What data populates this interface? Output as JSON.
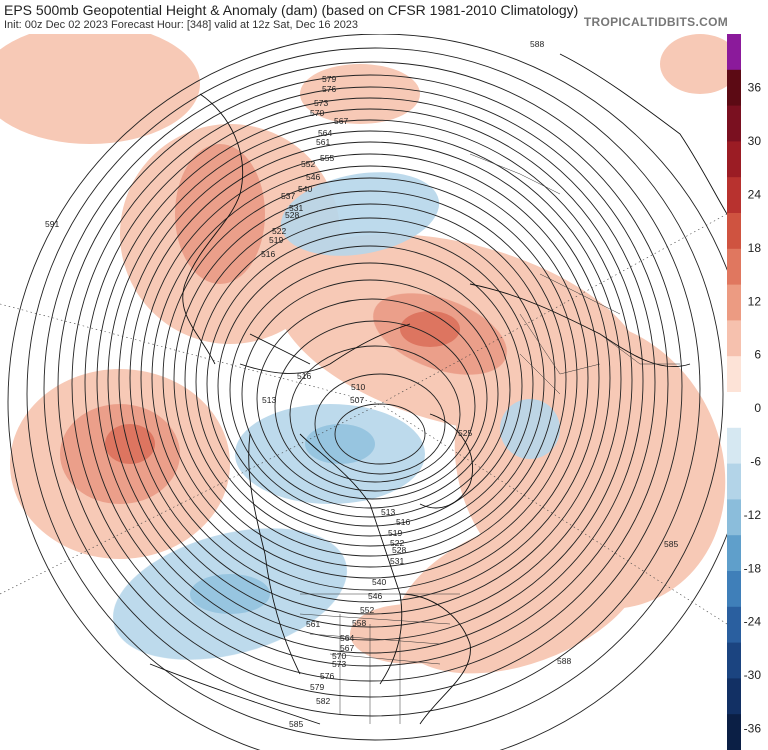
{
  "header": {
    "title": "EPS 500mb Geopotential Height & Anomaly (dam) (based on CFSR 1981-2010 Climatology)",
    "subtitle": "Init: 00z Dec 02 2023   Forecast Hour: [348]   valid at 12z Sat, Dec 16 2023",
    "brand": "TROPICALTIDBITS.COM"
  },
  "colorbar": {
    "ticks": [
      "36",
      "30",
      "24",
      "18",
      "12",
      "6",
      "0",
      "-6",
      "-12",
      "-18",
      "-24",
      "-30",
      "-36"
    ],
    "colors": [
      "#8b1a9b",
      "#5c0a14",
      "#7a1020",
      "#9b1c24",
      "#b8322f",
      "#cf5340",
      "#e0775f",
      "#ec9b82",
      "#f6c1ae",
      "#fde3d7",
      "#ffffff",
      "#d6e8f2",
      "#b3d4e8",
      "#8bbddb",
      "#5f9fcb",
      "#3f7fb9",
      "#2a5f9f",
      "#1b4480",
      "#123064",
      "#0b1f45"
    ]
  },
  "contour_labels": [
    "588",
    "579",
    "576",
    "573",
    "570",
    "567",
    "564",
    "561",
    "555",
    "552",
    "546",
    "540",
    "537",
    "531",
    "528",
    "522",
    "519",
    "516",
    "591",
    "516",
    "510",
    "507",
    "513",
    "525",
    "513",
    "516",
    "519",
    "522",
    "528",
    "531",
    "540",
    "546",
    "552",
    "558",
    "561",
    "564",
    "567",
    "570",
    "573",
    "576",
    "579",
    "582",
    "585",
    "585",
    "588"
  ]
}
